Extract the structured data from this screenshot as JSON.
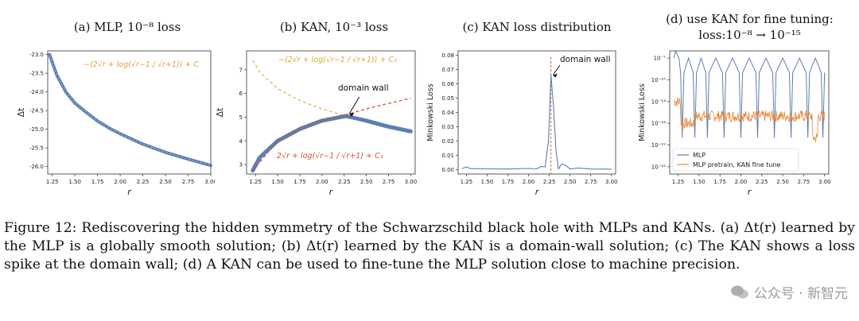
{
  "chart_data": [
    {
      "type": "line",
      "title": "(a) MLP, 10⁻⁸ loss",
      "xlabel": "r",
      "ylabel": "Δt",
      "xlim": [
        1.2,
        3.0
      ],
      "ylim": [
        -26.2,
        -22.9
      ],
      "xticks": [
        "1.25",
        "1.50",
        "1.75",
        "2.00",
        "2.25",
        "2.50",
        "2.75",
        "3.00"
      ],
      "yticks": [
        "-23.0",
        "-23.5",
        "-24.0",
        "-24.5",
        "-25.0",
        "-25.5",
        "-26.0"
      ],
      "annotations": [
        "−(2√r + log(√r−1 / √r+1)) + C"
      ],
      "series": [
        {
          "x": [
            1.22,
            1.3,
            1.4,
            1.5,
            1.6,
            1.75,
            1.9,
            2.0,
            2.25,
            2.5,
            2.75,
            3.0
          ],
          "values": [
            -23.0,
            -23.55,
            -24.0,
            -24.3,
            -24.5,
            -24.78,
            -25.0,
            -25.12,
            -25.4,
            -25.62,
            -25.8,
            -25.97
          ],
          "color": "#5a7fb0"
        }
      ]
    },
    {
      "type": "line",
      "title": "(b) KAN, 10⁻³ loss",
      "xlabel": "r",
      "ylabel": "Δt",
      "xlim": [
        1.15,
        3.05
      ],
      "ylim": [
        2.6,
        7.8
      ],
      "xticks": [
        "1.25",
        "1.50",
        "1.75",
        "2.00",
        "2.25",
        "2.50",
        "2.75",
        "3.00"
      ],
      "yticks": [
        "3",
        "4",
        "5",
        "6",
        "7"
      ],
      "annotations": [
        "−(2√r + log(√r−1 / √r+1)) + C₂",
        "domain wall",
        "2√r + log(√r−1 / √r+1) + C₁"
      ],
      "series": [
        {
          "x": [
            1.22,
            1.3,
            1.5,
            1.75,
            2.0,
            2.27,
            2.5,
            2.75,
            3.0
          ],
          "values": [
            2.75,
            3.3,
            4.0,
            4.5,
            4.85,
            5.05,
            4.85,
            4.6,
            4.4
          ],
          "color": "#5a7fb0"
        },
        {
          "x": [
            1.22,
            1.5,
            1.75,
            2.0,
            2.25,
            2.5,
            2.75,
            3.0
          ],
          "values": [
            2.75,
            4.0,
            4.5,
            4.85,
            5.08,
            5.35,
            5.58,
            5.8
          ],
          "color": "#d9503f"
        },
        {
          "x": [
            1.22,
            1.3,
            1.5,
            1.75,
            2.0,
            2.27
          ],
          "values": [
            7.4,
            6.9,
            6.2,
            5.7,
            5.35,
            5.05
          ],
          "color": "#e8b04a"
        }
      ]
    },
    {
      "type": "line",
      "title": "(c) KAN loss distribution",
      "xlabel": "r",
      "ylabel": "Minkowski Loss",
      "xlim": [
        1.15,
        3.05
      ],
      "ylim": [
        -0.003,
        0.083
      ],
      "xticks": [
        "1.25",
        "1.50",
        "1.75",
        "2.00",
        "2.25",
        "2.50",
        "2.75",
        "3.00"
      ],
      "yticks": [
        "0.00",
        "0.01",
        "0.02",
        "0.03",
        "0.04",
        "0.05",
        "0.06",
        "0.07",
        "0.08"
      ],
      "annotations": [
        "domain wall"
      ],
      "series": [
        {
          "x": [
            1.2,
            1.25,
            1.3,
            1.5,
            1.75,
            2.0,
            2.1,
            2.15,
            2.2,
            2.24,
            2.27,
            2.3,
            2.33,
            2.36,
            2.4,
            2.45,
            2.5,
            2.6,
            2.75,
            3.0
          ],
          "values": [
            0.0008,
            0.002,
            0.0008,
            0.0006,
            0.0005,
            0.0009,
            0.0006,
            0.0022,
            0.002,
            0.02,
            0.066,
            0.045,
            0.014,
            0.0005,
            0.004,
            0.003,
            0.0005,
            0.0012,
            0.0005,
            0.0004
          ],
          "color": "#5a7fb0"
        }
      ]
    },
    {
      "type": "line",
      "title": "(d) use KAN for fine tuning:",
      "subtitle": "loss:10⁻⁸ → 10⁻¹⁵",
      "xlabel": "r",
      "ylabel": "Minkowski Loss",
      "log_y": true,
      "xlim": [
        1.15,
        3.05
      ],
      "ylim": [
        1e-23,
        1e-06
      ],
      "xticks": [
        "1.25",
        "1.50",
        "1.75",
        "2.00",
        "2.25",
        "2.50",
        "2.75",
        "3.00"
      ],
      "yticks": [
        "10⁻⁷",
        "10⁻¹⁰",
        "10⁻¹³",
        "10⁻¹⁶",
        "10⁻¹⁹",
        "10⁻²²"
      ],
      "legend_position": "bottom-right",
      "series": [
        {
          "name": "MLP",
          "x": [
            1.2,
            1.22,
            1.3,
            1.35,
            1.45,
            1.6,
            1.8,
            2.0,
            2.2,
            2.4,
            2.6,
            2.8,
            3.0
          ],
          "values": [
            1e-07,
            1e-06,
            1e-18,
            1e-07,
            1e-16,
            1e-07,
            1e-18,
            1e-08,
            1e-18,
            1e-08,
            1e-18,
            1e-08,
            1e-10
          ],
          "color": "#5a7fb0"
        },
        {
          "name": "MLP pretrain, KAN fine tune",
          "x": [
            1.2,
            1.3,
            1.4,
            1.5,
            1.75,
            2.0,
            2.25,
            2.5,
            2.75,
            2.85,
            2.95,
            3.0
          ],
          "values": [
            1e-13,
            1e-14,
            1e-17,
            1e-15,
            1e-15,
            1e-15,
            1e-15,
            1e-15,
            1e-15,
            1e-19,
            1e-16,
            1e-17
          ],
          "color": "#e8883a"
        }
      ]
    }
  ],
  "caption": {
    "label": "Figure 12:",
    "text": "Rediscovering the hidden symmetry of the Schwarzschild black hole with MLPs and KANs. (a) Δt(r) learned by the MLP is a globally smooth solution; (b) Δt(r) learned by the KAN is a domain-wall solution; (c) The KAN shows a loss spike at the domain wall; (d) A KAN can be used to fine-tune the MLP solution close to machine precision."
  },
  "watermark": "公众号 · 新智元"
}
